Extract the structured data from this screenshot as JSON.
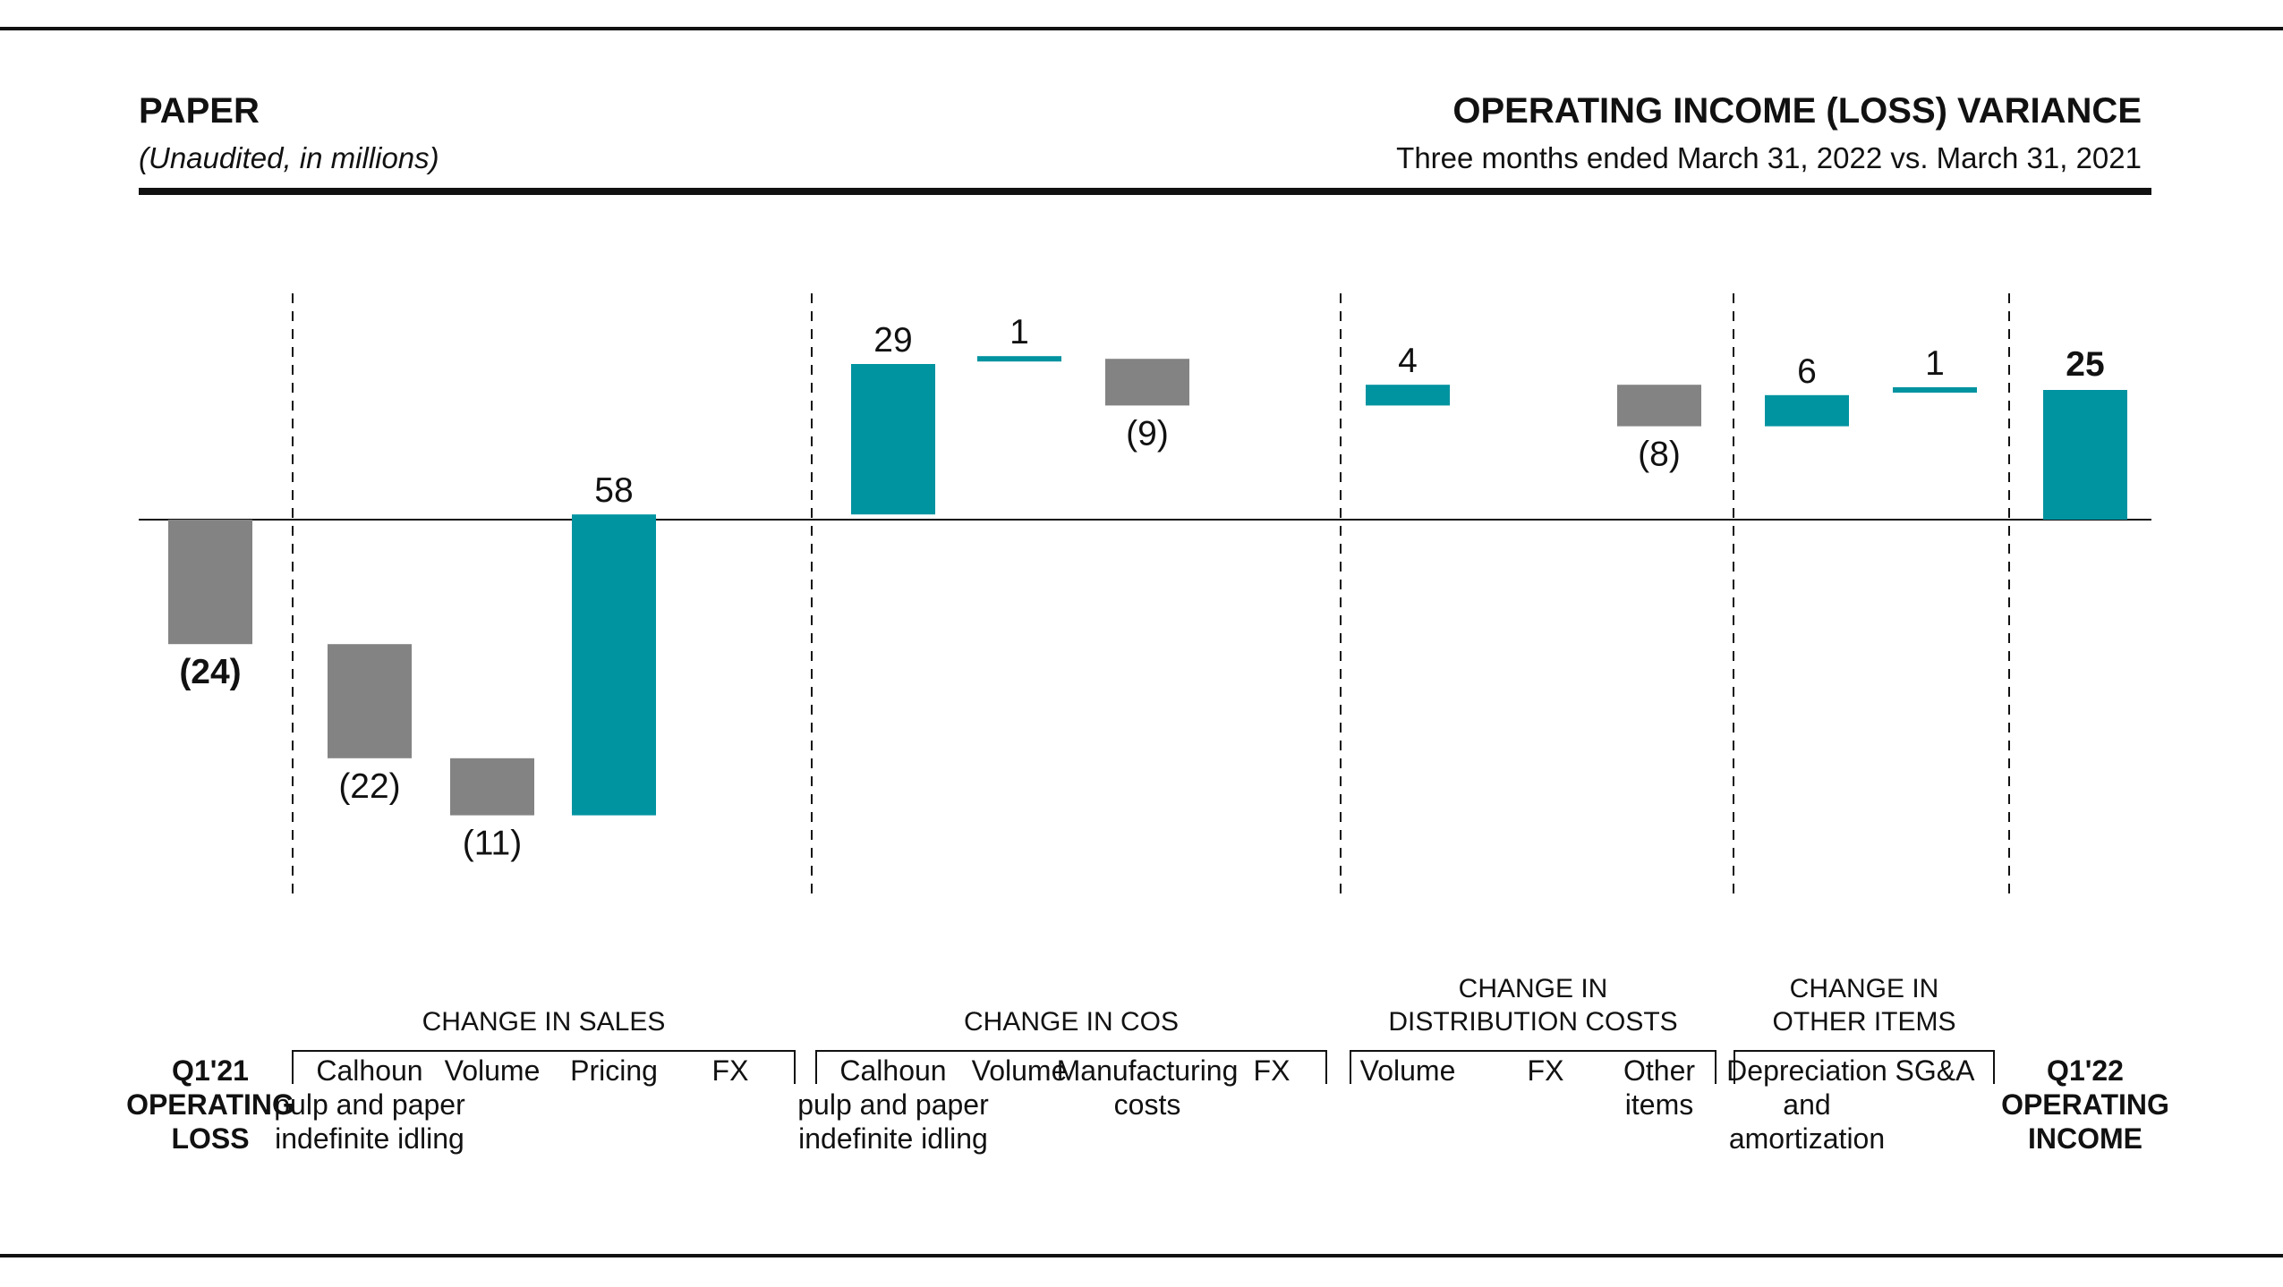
{
  "header": {
    "segment": "PAPER",
    "note": "(Unaudited, in millions)",
    "title": "OPERATING INCOME (LOSS) VARIANCE",
    "subtitle": "Three months ended March 31, 2022 vs. March 31, 2021"
  },
  "colors": {
    "increase": "#0093a0",
    "decrease": "#838383",
    "total_positive": "#0093a0",
    "total_negative": "#838383",
    "text": "#111111",
    "rule": "#111111"
  },
  "chart_data": {
    "type": "waterfall",
    "title": "OPERATING INCOME (LOSS) VARIANCE",
    "units": "millions",
    "start": {
      "label_lines": [
        "Q1'21",
        "OPERATING",
        "LOSS"
      ],
      "value": -24,
      "value_label": "(24)"
    },
    "groups": [
      {
        "name_lines": [
          "CHANGE IN SALES"
        ],
        "steps": [
          {
            "label_lines": [
              "Calhoun",
              "pulp and paper",
              "indefinite idling"
            ],
            "value": -22,
            "value_label": "(22)"
          },
          {
            "label_lines": [
              "Volume"
            ],
            "value": -11,
            "value_label": "(11)"
          },
          {
            "label_lines": [
              "Pricing"
            ],
            "value": 58,
            "value_label": "58"
          },
          {
            "label_lines": [
              "FX"
            ],
            "value": 0,
            "value_label": ""
          }
        ]
      },
      {
        "name_lines": [
          "CHANGE IN COS"
        ],
        "steps": [
          {
            "label_lines": [
              "Calhoun",
              "pulp and paper",
              "indefinite idling"
            ],
            "value": 29,
            "value_label": "29"
          },
          {
            "label_lines": [
              "Volume"
            ],
            "value": 1,
            "value_label": "1"
          },
          {
            "label_lines": [
              "Manufacturing",
              "costs"
            ],
            "value": -9,
            "value_label": "(9)"
          },
          {
            "label_lines": [
              "FX"
            ],
            "value": 0,
            "value_label": ""
          }
        ]
      },
      {
        "name_lines": [
          "CHANGE IN",
          "DISTRIBUTION COSTS"
        ],
        "steps": [
          {
            "label_lines": [
              "Volume"
            ],
            "value": 4,
            "value_label": "4"
          },
          {
            "label_lines": [
              "FX"
            ],
            "value": 0,
            "value_label": ""
          },
          {
            "label_lines": [
              "Other",
              "items"
            ],
            "value": -8,
            "value_label": "(8)"
          }
        ]
      },
      {
        "name_lines": [
          "CHANGE IN",
          "OTHER ITEMS"
        ],
        "steps": [
          {
            "label_lines": [
              "Depreciation",
              "and",
              "amortization"
            ],
            "value": 6,
            "value_label": "6"
          },
          {
            "label_lines": [
              "SG&A"
            ],
            "value": 1,
            "value_label": "1"
          }
        ]
      }
    ],
    "end": {
      "label_lines": [
        "Q1'22",
        "OPERATING",
        "INCOME"
      ],
      "value": 25,
      "value_label": "25"
    }
  }
}
